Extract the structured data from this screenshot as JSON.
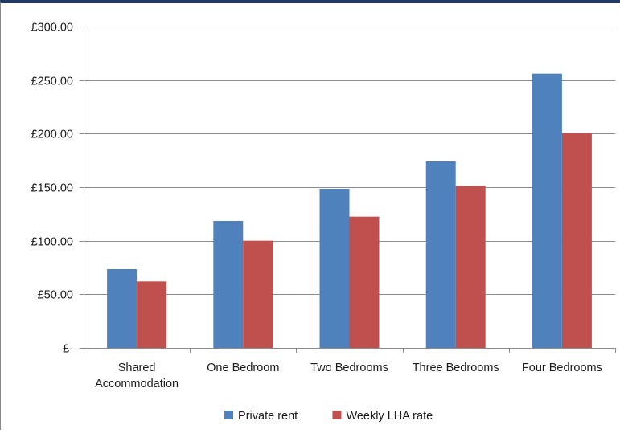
{
  "chart_data": {
    "type": "bar",
    "categories": [
      [
        "Shared",
        "Accommodation"
      ],
      [
        "One Bedroom"
      ],
      [
        "Two Bedrooms"
      ],
      [
        "Three Bedrooms"
      ],
      [
        "Four Bedrooms"
      ]
    ],
    "series": [
      {
        "name": "Private rent",
        "color": "#4f81bd",
        "values": [
          73.5,
          118.5,
          148.5,
          174.0,
          256.0
        ]
      },
      {
        "name": "Weekly LHA rate",
        "color": "#c0504d",
        "values": [
          62.0,
          100.0,
          122.5,
          151.0,
          200.5
        ]
      }
    ],
    "yticks": [
      {
        "value": 0,
        "label": "£-"
      },
      {
        "value": 50,
        "label": "£50.00"
      },
      {
        "value": 100,
        "label": "£100.00"
      },
      {
        "value": 150,
        "label": "£150.00"
      },
      {
        "value": 200,
        "label": "£200.00"
      },
      {
        "value": 250,
        "label": "£250.00"
      },
      {
        "value": 300,
        "label": "£300.00"
      }
    ],
    "ylim": [
      0,
      300
    ],
    "grid": true,
    "legend_position": "bottom",
    "title": "",
    "xlabel": "",
    "ylabel": ""
  }
}
